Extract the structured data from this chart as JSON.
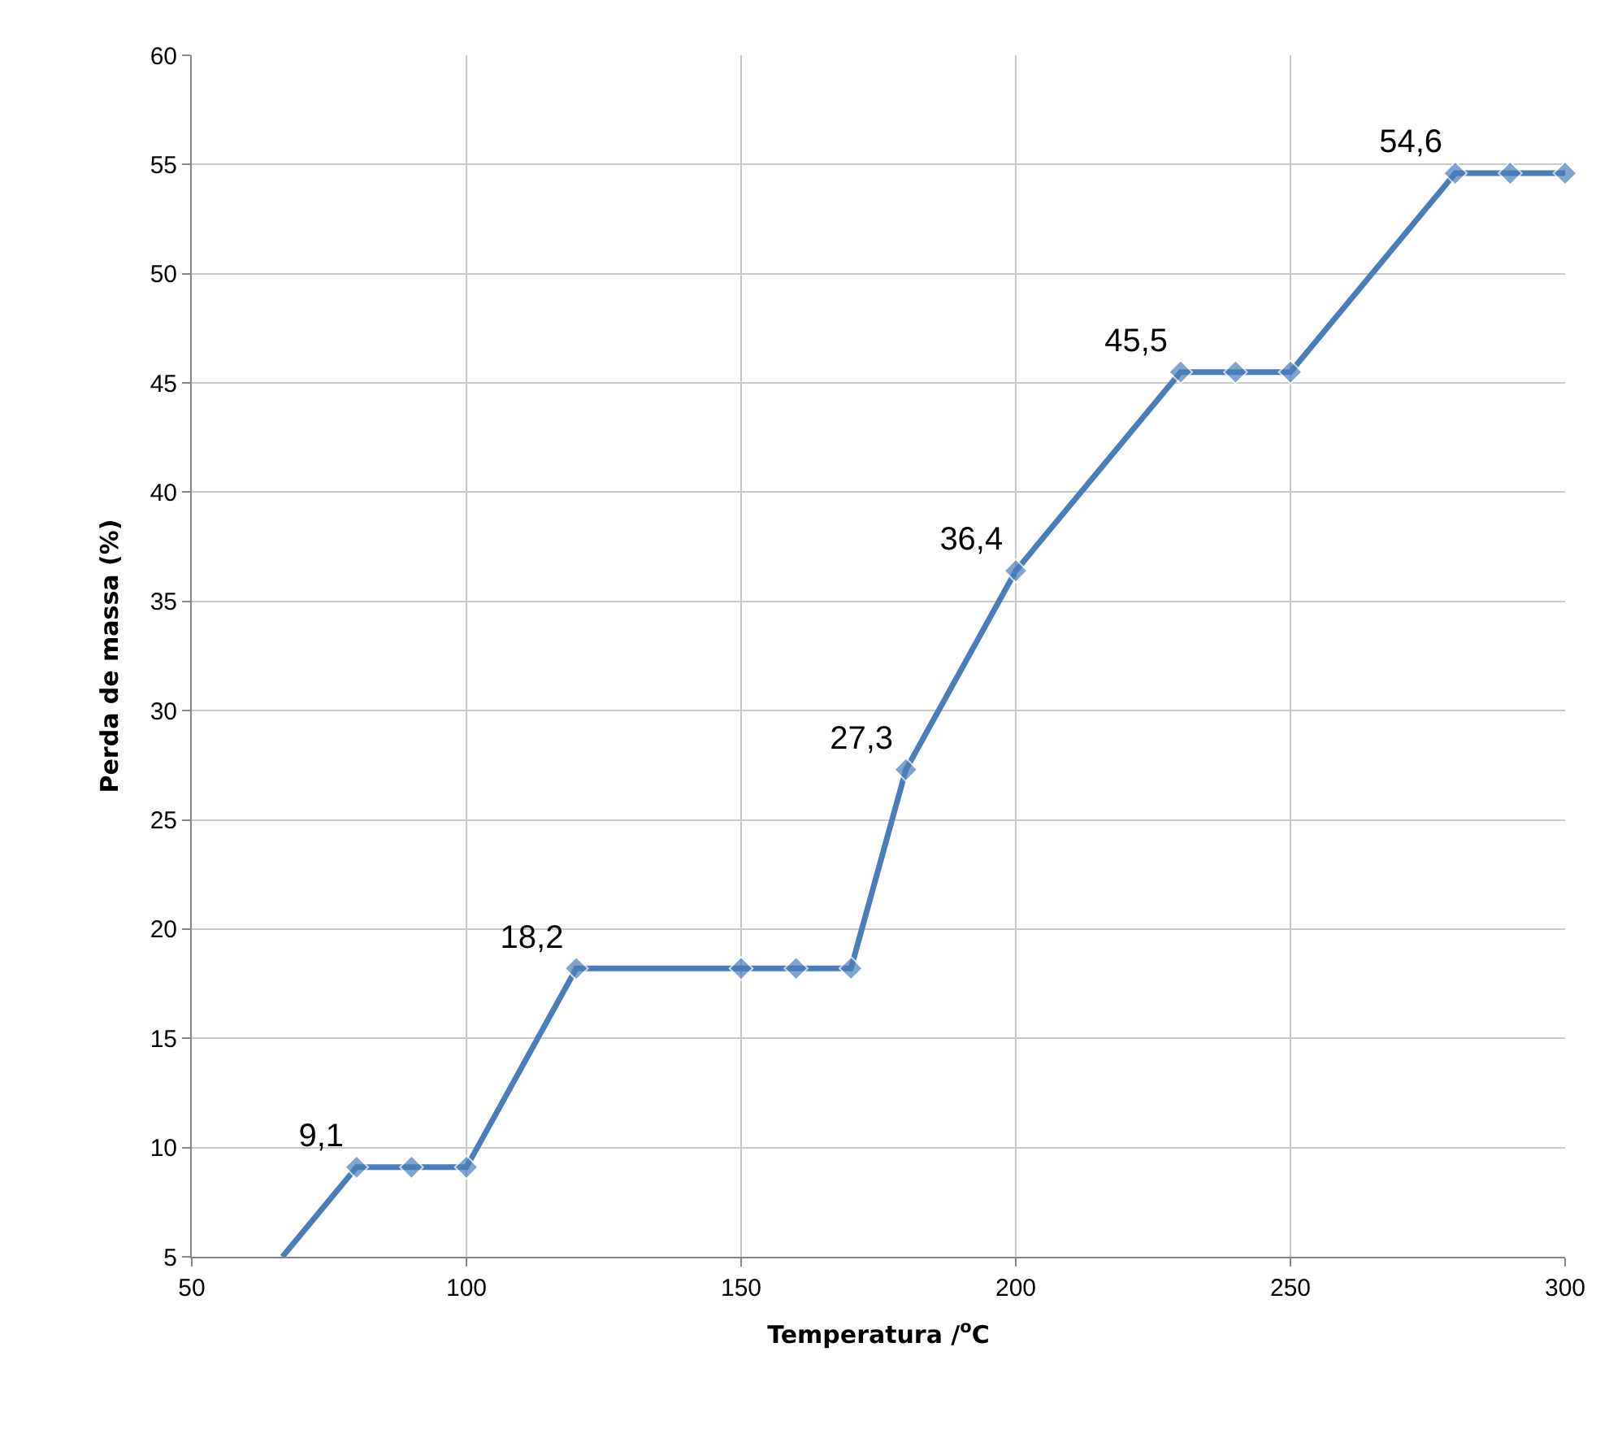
{
  "chart_data": {
    "type": "line",
    "xlabel": "Temperatura /$^{o}$C",
    "ylabel": "Perda de massa (%)",
    "x": [
      66.5,
      80,
      90,
      100,
      120,
      150,
      160,
      170,
      180,
      200,
      230,
      240,
      250,
      280,
      290,
      300
    ],
    "series": [
      {
        "color": "#4a7ebb",
        "values": [
          5,
          9.1,
          9.1,
          9.1,
          18.2,
          18.2,
          18.2,
          18.2,
          27.3,
          36.4,
          45.5,
          45.5,
          45.5,
          54.6,
          54.6,
          54.6
        ],
        "value_labels": [
          null,
          "9,1",
          null,
          null,
          "18,2",
          null,
          null,
          null,
          "27,3",
          "36,4",
          "45,5",
          null,
          null,
          "54,6",
          null,
          null
        ]
      }
    ],
    "xlim": [
      50,
      300
    ],
    "xticks": [
      50,
      100,
      150,
      200,
      250,
      300
    ],
    "ylim": [
      5,
      60
    ],
    "yticks": [
      5,
      10,
      15,
      20,
      25,
      30,
      35,
      40,
      45,
      50,
      55,
      60
    ],
    "grid": true,
    "legend": false,
    "marker": "diamond",
    "line_style": "solid"
  }
}
